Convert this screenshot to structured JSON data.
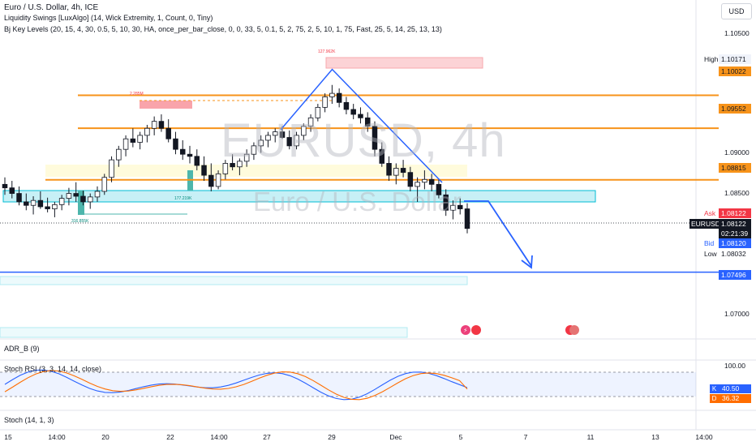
{
  "header": {
    "symbol_line": "Euro / U.S. Dollar, 4h, ICE",
    "indicator1": "Liquidity Swings [LuxAlgo] (14, Wick Extremity, 1, Count, 0, Tiny)",
    "indicator2": "Bj Key Levels (20, 15, 4, 30, 0.5, 5, 10, 30, HA, once_per_bar_close, 0, 0, 33, 5, 0.1, 5, 2, 75, 2, 5, 10, 1, 75, Fast, 25, 5, 14, 25, 13, 13)",
    "currency": "USD"
  },
  "watermark": {
    "symbol": "EURUSD, 4h",
    "description": "Euro / U.S. Dollar"
  },
  "price_axis": {
    "ticks": [
      "1.10500",
      "1.09000",
      "1.08500",
      "1.07000"
    ],
    "labels": {
      "high_tag": "High",
      "high": "1.10171",
      "level1": "1.10022",
      "level2": "1.09552",
      "level3": "1.08815",
      "ask_tag": "Ask",
      "ask": "1.08122",
      "symbol_tag": "EURUSD",
      "last": "1.08122",
      "countdown": "02:21:39",
      "bid_tag": "Bid",
      "bid": "1.08120",
      "low_tag": "Low",
      "low": "1.08032",
      "level4": "1.07496"
    }
  },
  "time_axis": [
    "15",
    "14:00",
    "20",
    "22",
    "14:00",
    "27",
    "29",
    "Dec",
    "5",
    "7",
    "11",
    "13",
    "14:00"
  ],
  "annotations": {
    "liq1": "127.962K",
    "liq2": "2.285M",
    "liq3": "177.219K",
    "liq4": "316.855K"
  },
  "panes": {
    "adr": "ADR_B (9)",
    "stoch_rsi": "Stoch RSI (3, 3, 14, 14, close)",
    "stoch": "Stoch (14, 1, 3)",
    "stoch_rsi_axis_top": "100.00",
    "k_tag": "K",
    "k_value": "40.50",
    "d_tag": "D",
    "d_value": "36.32"
  },
  "colors": {
    "up": "#ffffff",
    "down": "#131722",
    "level": "#f7931a",
    "trend": "#2962ff",
    "zone": "#00bcd4",
    "rsi_k": "#2962ff",
    "rsi_d": "#ff6d00"
  },
  "chart_data": {
    "type": "candlestick",
    "title": "Euro / U.S. Dollar, 4h, ICE",
    "y_range": [
      1.0675,
      1.1092
    ],
    "key_levels": [
      1.10022,
      1.09552,
      1.08815,
      1.07496
    ],
    "series": [
      {
        "ohlc": [
          [
            1.0875,
            1.0885,
            1.086,
            1.087
          ],
          [
            1.087,
            1.088,
            1.0855,
            1.0862
          ],
          [
            1.0862,
            1.0872,
            1.0845,
            1.085
          ],
          [
            1.085,
            1.0862,
            1.0838,
            1.0845
          ],
          [
            1.0845,
            1.0858,
            1.0832,
            1.0852
          ],
          [
            1.0852,
            1.0865,
            1.084,
            1.0843
          ],
          [
            1.0843,
            1.0856,
            1.0835,
            1.084
          ],
          [
            1.084,
            1.085,
            1.0828,
            1.0846
          ],
          [
            1.0846,
            1.086,
            1.0838,
            1.0855
          ],
          [
            1.0855,
            1.087,
            1.0845,
            1.0862
          ],
          [
            1.0862,
            1.0878,
            1.085,
            1.0858
          ],
          [
            1.0858,
            1.0866,
            1.0845,
            1.085
          ],
          [
            1.085,
            1.0862,
            1.084,
            1.0857
          ],
          [
            1.0857,
            1.0872,
            1.085,
            1.0865
          ],
          [
            1.0865,
            1.089,
            1.086,
            1.0885
          ],
          [
            1.0885,
            1.0915,
            1.0878,
            1.091
          ],
          [
            1.091,
            1.093,
            1.09,
            1.0925
          ],
          [
            1.0925,
            1.0945,
            1.0915,
            1.094
          ],
          [
            1.094,
            1.0955,
            1.0928,
            1.0935
          ],
          [
            1.0935,
            1.095,
            1.0925,
            1.0945
          ],
          [
            1.0945,
            1.096,
            1.0935,
            1.0955
          ],
          [
            1.0955,
            1.0972,
            1.0945,
            1.0965
          ],
          [
            1.0965,
            1.0975,
            1.095,
            1.0955
          ],
          [
            1.0955,
            1.0968,
            1.0935,
            1.094
          ],
          [
            1.094,
            1.095,
            1.0918,
            1.0925
          ],
          [
            1.0925,
            1.0938,
            1.091,
            1.0918
          ],
          [
            1.0918,
            1.093,
            1.0905,
            1.0915
          ],
          [
            1.0915,
            1.0925,
            1.0895,
            1.0902
          ],
          [
            1.0902,
            1.0915,
            1.088,
            1.0888
          ],
          [
            1.0888,
            1.0905,
            1.0865,
            1.0872
          ],
          [
            1.0872,
            1.0895,
            1.0868,
            1.089
          ],
          [
            1.089,
            1.091,
            1.0882,
            1.0905
          ],
          [
            1.0905,
            1.0918,
            1.0895,
            1.09
          ],
          [
            1.09,
            1.0912,
            1.0888,
            1.0908
          ],
          [
            1.0908,
            1.0925,
            1.09,
            1.0918
          ],
          [
            1.0918,
            1.0935,
            1.091,
            1.093
          ],
          [
            1.093,
            1.0945,
            1.092,
            1.0938
          ],
          [
            1.0938,
            1.095,
            1.0928,
            1.0945
          ],
          [
            1.0945,
            1.0955,
            1.0935,
            1.095
          ],
          [
            1.095,
            1.0958,
            1.094,
            1.0942
          ],
          [
            1.0942,
            1.0952,
            1.0925,
            1.093
          ],
          [
            1.093,
            1.095,
            1.0925,
            1.0945
          ],
          [
            1.0945,
            1.0962,
            1.0938,
            1.0958
          ],
          [
            1.0958,
            1.0975,
            1.095,
            1.097
          ],
          [
            1.097,
            1.099,
            1.0965,
            1.0985
          ],
          [
            1.0985,
            1.1005,
            1.0978,
            1.1
          ],
          [
            1.1,
            1.1017,
            1.099,
            1.1005
          ],
          [
            1.1005,
            1.1012,
            1.0985,
            1.0992
          ],
          [
            1.0992,
            1.1,
            1.0975,
            1.0982
          ],
          [
            1.0982,
            1.099,
            1.0968,
            1.0975
          ],
          [
            1.0975,
            1.0985,
            1.0962,
            1.097
          ],
          [
            1.097,
            1.0978,
            1.095,
            1.0958
          ],
          [
            1.0958,
            1.0965,
            1.0915,
            1.0925
          ],
          [
            1.0925,
            1.0935,
            1.09,
            1.0905
          ],
          [
            1.0905,
            1.0915,
            1.088,
            1.0888
          ],
          [
            1.0888,
            1.0905,
            1.0875,
            1.0898
          ],
          [
            1.0898,
            1.091,
            1.0885,
            1.0892
          ],
          [
            1.0892,
            1.09,
            1.0865,
            1.0872
          ],
          [
            1.0872,
            1.0885,
            1.085,
            1.0878
          ],
          [
            1.0878,
            1.0895,
            1.0868,
            1.0882
          ],
          [
            1.0882,
            1.089,
            1.0865,
            1.0875
          ],
          [
            1.0875,
            1.0882,
            1.0855,
            1.086
          ],
          [
            1.086,
            1.0868,
            1.083,
            1.0838
          ],
          [
            1.0838,
            1.0852,
            1.0825,
            1.0845
          ],
          [
            1.0845,
            1.0855,
            1.0832,
            1.084
          ],
          [
            1.084,
            1.0848,
            1.0805,
            1.0812
          ]
        ]
      }
    ],
    "stoch_rsi": {
      "k": 40.5,
      "d": 36.32,
      "range": [
        0,
        100
      ]
    }
  }
}
